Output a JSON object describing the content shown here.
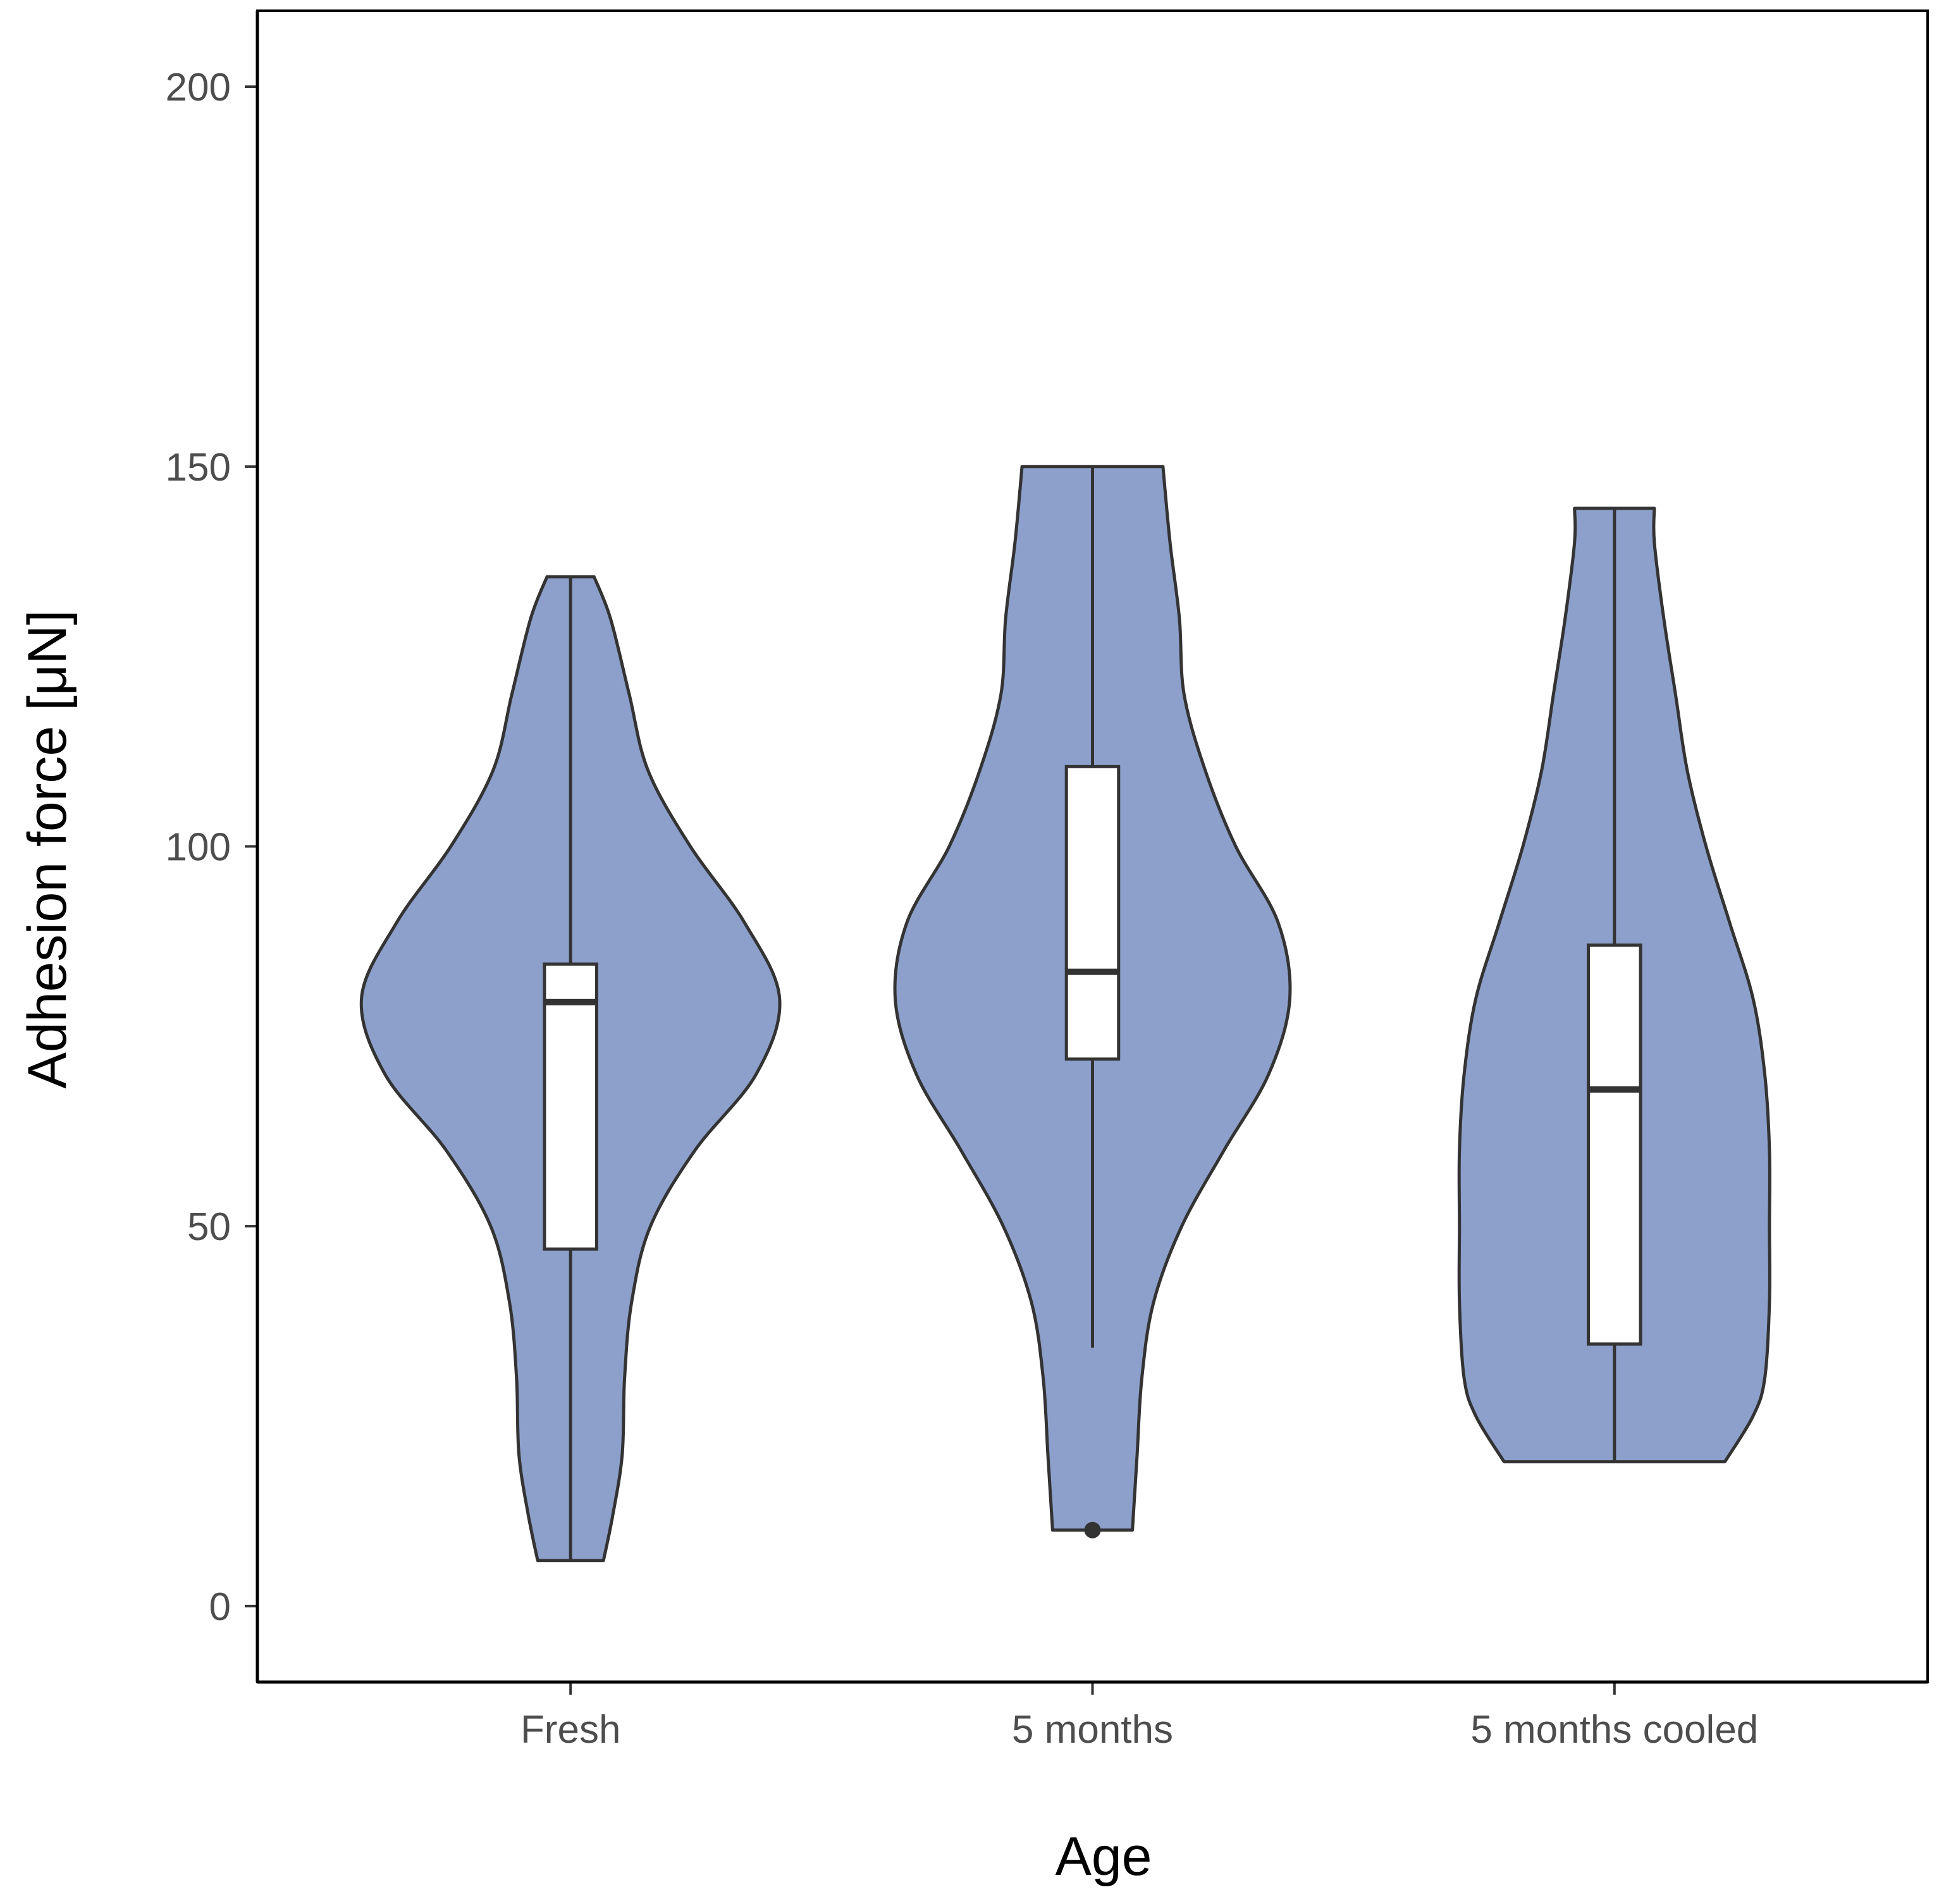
{
  "chart_data": {
    "type": "violin",
    "title": "",
    "xlabel": "Age",
    "ylabel": "Adhesion force [μN]",
    "ylim": [
      -10,
      210
    ],
    "yticks": [
      0,
      50,
      100,
      150,
      200
    ],
    "categories": [
      "Fresh",
      "5 months",
      "5 months cooled"
    ],
    "fill_color": "#8da0cb",
    "outline_color": "#333333",
    "grid": false,
    "legend": "none",
    "groups": [
      {
        "name": "Fresh",
        "min": 6,
        "q1": 47,
        "median": 79.5,
        "q3": 84.5,
        "max": 135.5,
        "outliers": [],
        "density": [
          [
            6,
            0.14
          ],
          [
            12,
            0.18
          ],
          [
            20,
            0.22
          ],
          [
            30,
            0.23
          ],
          [
            40,
            0.26
          ],
          [
            50,
            0.34
          ],
          [
            60,
            0.53
          ],
          [
            70,
            0.79
          ],
          [
            80,
            0.89
          ],
          [
            90,
            0.74
          ],
          [
            100,
            0.51
          ],
          [
            110,
            0.33
          ],
          [
            120,
            0.25
          ],
          [
            130,
            0.17
          ],
          [
            135.5,
            0.1
          ]
        ]
      },
      {
        "name": "5 months",
        "min": 34,
        "q1": 72,
        "median": 83.5,
        "q3": 110.5,
        "max": 150,
        "outliers": [
          10
        ],
        "density": [
          [
            10,
            0.17
          ],
          [
            20,
            0.19
          ],
          [
            30,
            0.21
          ],
          [
            40,
            0.26
          ],
          [
            50,
            0.38
          ],
          [
            60,
            0.56
          ],
          [
            70,
            0.75
          ],
          [
            80,
            0.84
          ],
          [
            90,
            0.79
          ],
          [
            100,
            0.61
          ],
          [
            110,
            0.48
          ],
          [
            120,
            0.39
          ],
          [
            130,
            0.37
          ],
          [
            140,
            0.33
          ],
          [
            150,
            0.3
          ]
        ]
      },
      {
        "name": "5 months cooled",
        "min": 19,
        "q1": 34.5,
        "median": 68,
        "q3": 87,
        "max": 144.5,
        "outliers": [],
        "density": [
          [
            19,
            0.47
          ],
          [
            25,
            0.59
          ],
          [
            30,
            0.64
          ],
          [
            40,
            0.66
          ],
          [
            50,
            0.66
          ],
          [
            60,
            0.66
          ],
          [
            70,
            0.64
          ],
          [
            80,
            0.59
          ],
          [
            90,
            0.49
          ],
          [
            100,
            0.39
          ],
          [
            110,
            0.31
          ],
          [
            120,
            0.26
          ],
          [
            130,
            0.21
          ],
          [
            140,
            0.17
          ],
          [
            144.5,
            0.17
          ]
        ]
      }
    ]
  }
}
